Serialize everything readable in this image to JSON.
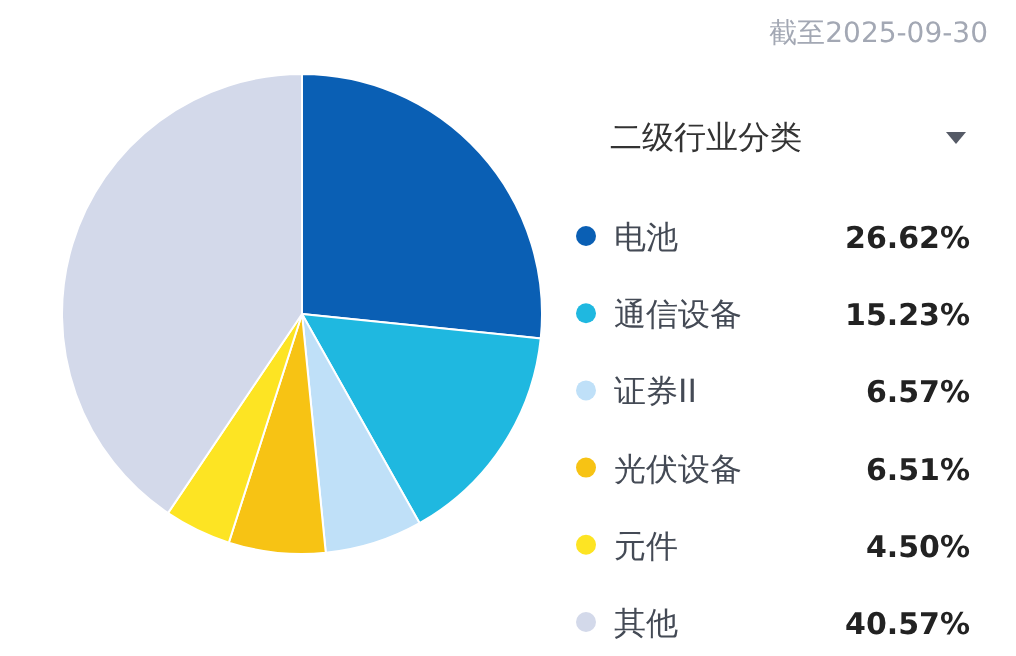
{
  "chart_data": {
    "type": "pie",
    "legend_title": "二级行业分类",
    "annotations": [
      "截至2025-09-30"
    ],
    "categories": [
      "电池",
      "通信设备",
      "证券II",
      "光伏设备",
      "元件",
      "其他"
    ],
    "values": [
      26.62,
      15.23,
      6.57,
      6.51,
      4.5,
      40.57
    ],
    "colors": [
      "#0a5fb4",
      "#1fb8e0",
      "#bfe0f8",
      "#f7c314",
      "#fde423",
      "#d3d9ea"
    ],
    "value_labels": [
      "26.62%",
      "15.23%",
      "6.57%",
      "6.51%",
      "4.50%",
      "40.57%"
    ],
    "legend": "right"
  }
}
